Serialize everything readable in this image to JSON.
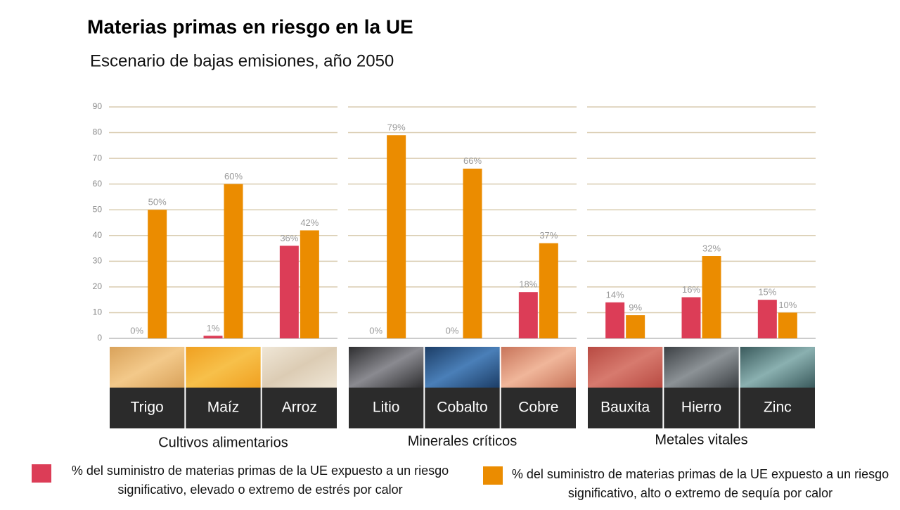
{
  "title": "Materias primas en riesgo en la UE",
  "subtitle": "Escenario de bajas emisiones, año 2050",
  "legend": [
    {
      "name": "% del suministro de materias primas de la UE expuesto a un riesgo significativo, elevado o extremo de estrés por calor",
      "color": "#dc3d57"
    },
    {
      "name": "% del suministro de materias primas de la UE expuesto a un riesgo significativo, alto o extremo de sequía por calor",
      "color": "#eb8c00"
    }
  ],
  "chart_data": [
    {
      "type": "bar",
      "title": "Cultivos alimentarios",
      "categories": [
        "Trigo",
        "Maíz",
        "Arroz"
      ],
      "series": [
        {
          "values": [
            0,
            1,
            36
          ],
          "value_labels": [
            "0%",
            "1%",
            "36%"
          ]
        },
        {
          "values": [
            50,
            60,
            42
          ],
          "value_labels": [
            "50%",
            "60%",
            "42%"
          ]
        }
      ],
      "ylim": [
        0,
        90
      ],
      "yticks": [
        0,
        10,
        20,
        30,
        40,
        50,
        60,
        70,
        80,
        90
      ],
      "grid": true,
      "show_tick_labels": true
    },
    {
      "type": "bar",
      "title": "Minerales críticos",
      "categories": [
        "Litio",
        "Cobalto",
        "Cobre"
      ],
      "series": [
        {
          "values": [
            0,
            0,
            18
          ],
          "value_labels": [
            "0%",
            "0%",
            "18%"
          ]
        },
        {
          "values": [
            79,
            66,
            37
          ],
          "value_labels": [
            "79%",
            "66%",
            "37%"
          ]
        }
      ],
      "ylim": [
        0,
        90
      ],
      "yticks": [
        0,
        10,
        20,
        30,
        40,
        50,
        60,
        70,
        80,
        90
      ],
      "grid": true,
      "show_tick_labels": false
    },
    {
      "type": "bar",
      "title": "Metales vitales",
      "categories": [
        "Bauxita",
        "Hierro",
        "Zinc"
      ],
      "series": [
        {
          "values": [
            14,
            16,
            15
          ],
          "value_labels": [
            "14%",
            "16%",
            "15%"
          ]
        },
        {
          "values": [
            9,
            32,
            10
          ],
          "value_labels": [
            "9%",
            "32%",
            "10%"
          ]
        }
      ],
      "ylim": [
        0,
        90
      ],
      "yticks": [
        0,
        10,
        20,
        30,
        40,
        50,
        60,
        70,
        80,
        90
      ],
      "grid": true,
      "show_tick_labels": false
    }
  ]
}
